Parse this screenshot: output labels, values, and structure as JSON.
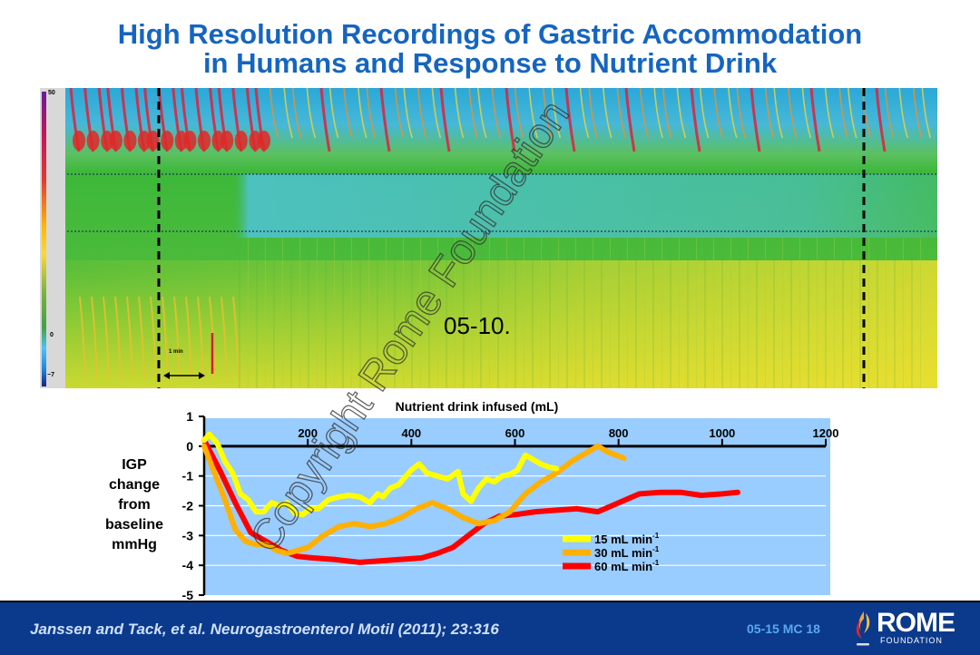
{
  "title": {
    "line1": "High Resolution Recordings of Gastric Accommodation",
    "line2": "in Humans and Response to Nutrient Drink"
  },
  "heatmap": {
    "scale_max": "50",
    "scale_zero": "0",
    "scale_min": "−7",
    "time_marker": "1 min",
    "colors": {
      "bg": "#3cb43c",
      "high": "#e0203c",
      "mid": "#f0e020",
      "low": "#40b8e0"
    }
  },
  "stamp": "05-10.",
  "watermark": "Copyright Rome Foundation",
  "chart_data": {
    "type": "line",
    "title": "",
    "xlabel": "Nutrient drink infused (mL)",
    "ylabel": "IGP change from baseline mmHg",
    "ylabel_lines": [
      "IGP",
      "change",
      "from",
      "baseline",
      "mmHg"
    ],
    "xlim": [
      0,
      1200
    ],
    "ylim": [
      -5,
      1
    ],
    "x_ticks": [
      "200",
      "400",
      "600",
      "800",
      "1000",
      "1200"
    ],
    "x_tick_values": [
      200,
      400,
      600,
      800,
      1000,
      1200
    ],
    "y_ticks": [
      "1",
      "0",
      "-1",
      "-2",
      "-3",
      "-4",
      "-5"
    ],
    "y_tick_values": [
      1,
      0,
      -1,
      -2,
      -3,
      -4,
      -5
    ],
    "grid": true,
    "legend_position": "bottom-center",
    "series": [
      {
        "name": "15 mL min",
        "sup": "-1",
        "color": "#ffff00",
        "x": [
          0,
          10,
          25,
          40,
          55,
          70,
          85,
          100,
          115,
          130,
          145,
          160,
          175,
          190,
          205,
          220,
          240,
          260,
          280,
          300,
          320,
          335,
          345,
          360,
          375,
          390,
          400,
          415,
          430,
          450,
          470,
          490,
          500,
          515,
          530,
          545,
          560,
          575,
          590,
          605,
          620,
          635,
          650,
          665,
          680
        ],
        "y": [
          0.2,
          0.4,
          0.1,
          -0.5,
          -0.9,
          -1.6,
          -1.8,
          -2.2,
          -2.2,
          -1.9,
          -2.0,
          -1.9,
          -2.25,
          -2.3,
          -2.1,
          -2.1,
          -1.8,
          -1.7,
          -1.65,
          -1.7,
          -1.9,
          -1.6,
          -1.7,
          -1.4,
          -1.3,
          -1.0,
          -0.8,
          -0.6,
          -0.9,
          -1.0,
          -1.1,
          -0.85,
          -1.6,
          -1.85,
          -1.4,
          -1.1,
          -1.2,
          -1.0,
          -0.95,
          -0.8,
          -0.3,
          -0.45,
          -0.6,
          -0.7,
          -0.75
        ]
      },
      {
        "name": "30 mL min",
        "sup": "-1",
        "color": "#ffb000",
        "x": [
          0,
          20,
          40,
          60,
          80,
          100,
          120,
          140,
          160,
          180,
          200,
          230,
          260,
          290,
          320,
          350,
          380,
          410,
          440,
          470,
          500,
          530,
          560,
          590,
          620,
          650,
          680,
          710,
          740,
          760,
          780,
          810
        ],
        "y": [
          0.0,
          -0.9,
          -1.8,
          -2.8,
          -3.2,
          -3.3,
          -3.3,
          -3.5,
          -3.6,
          -3.5,
          -3.4,
          -3.0,
          -2.7,
          -2.6,
          -2.7,
          -2.6,
          -2.4,
          -2.1,
          -1.9,
          -2.1,
          -2.4,
          -2.6,
          -2.5,
          -2.2,
          -1.6,
          -1.2,
          -0.9,
          -0.5,
          -0.2,
          0.0,
          -0.2,
          -0.4
        ]
      },
      {
        "name": "60 mL min",
        "sup": "-1",
        "color": "#ff0000",
        "x": [
          0,
          30,
          60,
          90,
          120,
          150,
          180,
          210,
          250,
          300,
          340,
          380,
          420,
          450,
          480,
          510,
          540,
          570,
          600,
          640,
          680,
          720,
          760,
          800,
          840,
          880,
          920,
          960,
          1000,
          1030
        ],
        "y": [
          0.2,
          -0.8,
          -1.9,
          -2.9,
          -3.2,
          -3.5,
          -3.7,
          -3.75,
          -3.8,
          -3.9,
          -3.85,
          -3.8,
          -3.75,
          -3.6,
          -3.4,
          -3.0,
          -2.6,
          -2.35,
          -2.3,
          -2.2,
          -2.15,
          -2.1,
          -2.2,
          -1.9,
          -1.6,
          -1.55,
          -1.55,
          -1.65,
          -1.6,
          -1.55
        ]
      }
    ]
  },
  "footer": {
    "citation": "Janssen and Tack, et al. Neurogastroenterol Motil (2011); 23:316",
    "slide_code": "05-15  MC 18",
    "logo_name": "ROME",
    "logo_sub": "FOUNDATION"
  }
}
